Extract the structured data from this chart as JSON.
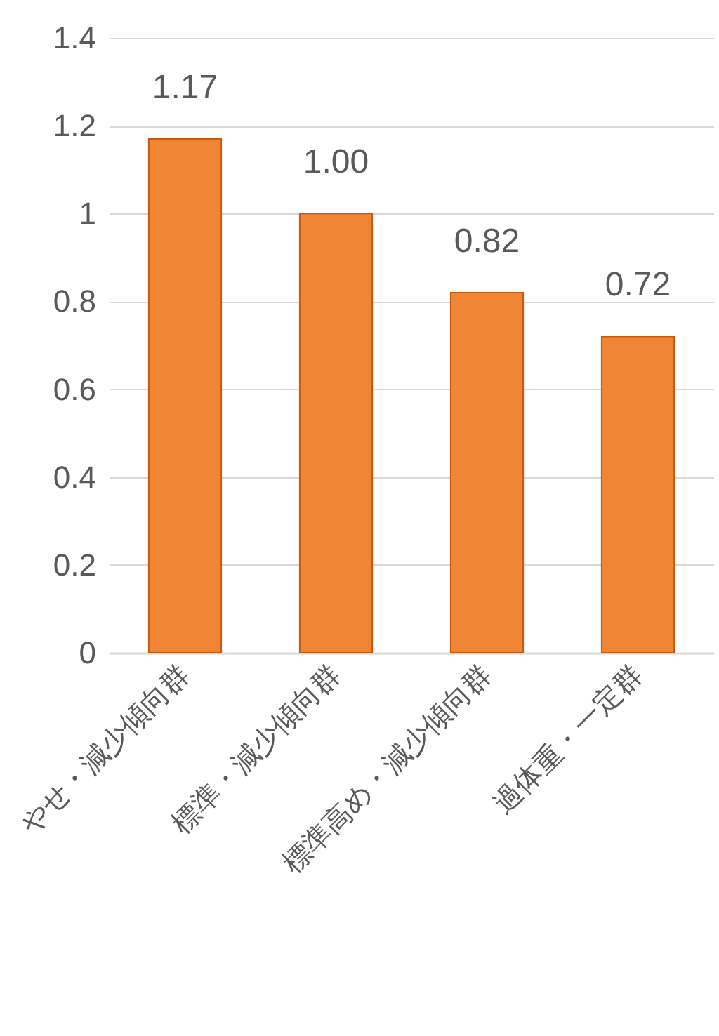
{
  "chart_data": {
    "type": "bar",
    "categories": [
      "やせ・減少傾向群",
      "標準・減少傾向群",
      "標準高め・減少傾向群",
      "過体重・一定群"
    ],
    "values": [
      1.17,
      1.0,
      0.82,
      0.72
    ],
    "value_labels": [
      "1.17",
      "1.00",
      "0.82",
      "0.72"
    ],
    "color": "#f08536",
    "ylim": [
      0,
      1.4
    ],
    "yticks": [
      0,
      0.2,
      0.4,
      0.6,
      0.8,
      1,
      1.2,
      1.4
    ],
    "grid": "y"
  }
}
